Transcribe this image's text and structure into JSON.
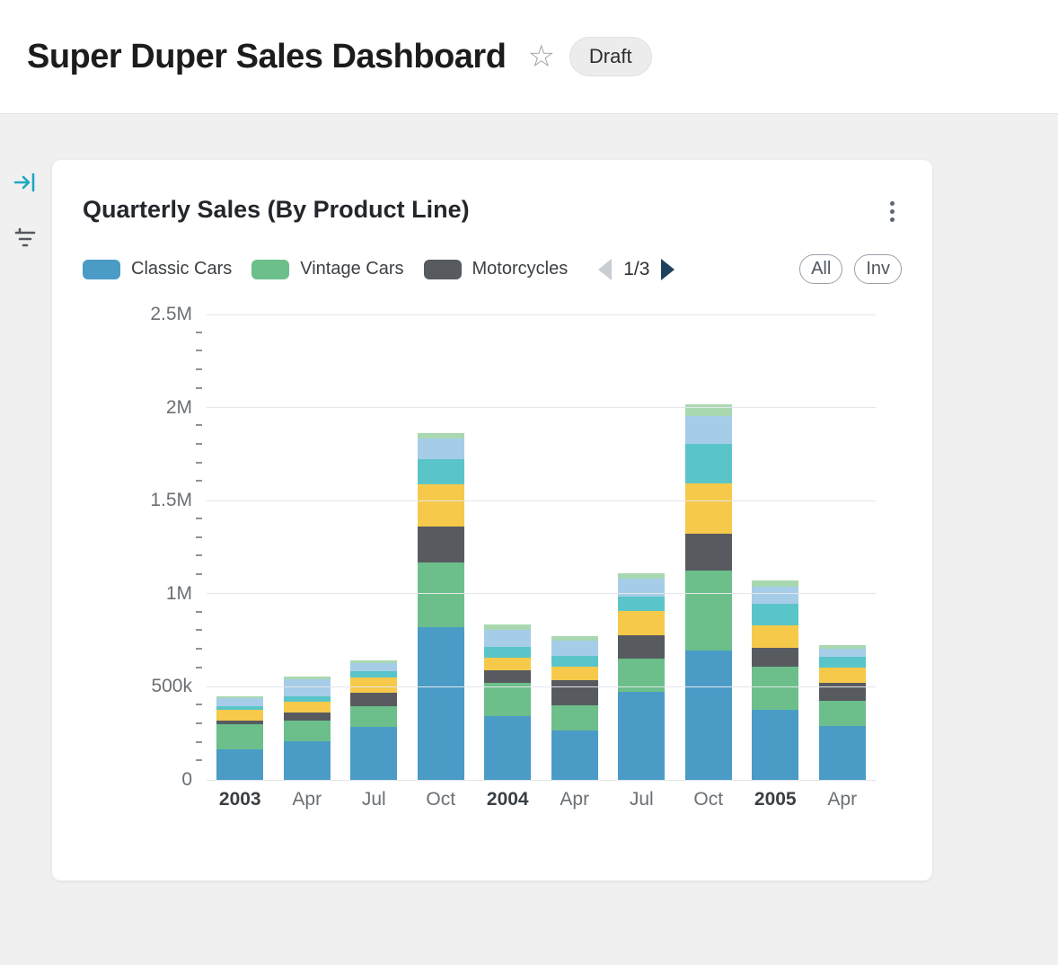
{
  "header": {
    "title": "Super Duper Sales Dashboard",
    "badge": "Draft",
    "star_icon": "star-outline"
  },
  "sidebar": {
    "icons": [
      "arrow-to-bar-icon",
      "filter-lines-icon"
    ],
    "accent_color": "#1ea7c2"
  },
  "card": {
    "title": "Quarterly Sales (By Product Line)",
    "menu_icon": "kebab-menu",
    "pager": {
      "label": "1/3",
      "prev_icon": "left-triangle",
      "next_icon": "right-triangle"
    },
    "filter_buttons": {
      "all": "All",
      "inv": "Inv"
    }
  },
  "colors": {
    "page_bg": "#f0f0f0",
    "grid": "#e4e6ea",
    "pager_next": "#20415e",
    "pager_prev": "#c9ced3"
  },
  "chart_data": {
    "type": "bar",
    "stacked": true,
    "title": "Quarterly Sales (By Product Line)",
    "ylim": [
      0,
      2500000
    ],
    "yticks": [
      "0",
      "500k",
      "1M",
      "1.5M",
      "2M",
      "2.5M"
    ],
    "minor_ticks_per_interval": 4,
    "legend_position": "top",
    "legend_pagination": "1/3",
    "grid": true,
    "categories": [
      {
        "label": "2003",
        "bold": true
      },
      {
        "label": "Apr",
        "bold": false
      },
      {
        "label": "Jul",
        "bold": false
      },
      {
        "label": "Oct",
        "bold": false
      },
      {
        "label": "2004",
        "bold": true
      },
      {
        "label": "Apr",
        "bold": false
      },
      {
        "label": "Jul",
        "bold": false
      },
      {
        "label": "Oct",
        "bold": false
      },
      {
        "label": "2005",
        "bold": true
      },
      {
        "label": "Apr",
        "bold": false
      }
    ],
    "series": [
      {
        "name": "Classic Cars",
        "color": "#4a9cc6",
        "in_legend": true,
        "values": [
          165000,
          210000,
          285000,
          822000,
          341000,
          265000,
          471000,
          697000,
          375000,
          289000
        ]
      },
      {
        "name": "Vintage Cars",
        "color": "#6cbf8b",
        "in_legend": true,
        "values": [
          135000,
          110000,
          110000,
          346000,
          178000,
          135000,
          183000,
          428000,
          231000,
          135000
        ]
      },
      {
        "name": "Motorcycles",
        "color": "#575b60",
        "in_legend": true,
        "values": [
          20000,
          40000,
          75000,
          192000,
          72000,
          135000,
          125000,
          197000,
          106000,
          96000
        ]
      },
      {
        "name": "series-4",
        "color": "#f6c94a",
        "in_legend": false,
        "values": [
          55000,
          60000,
          80000,
          226000,
          67000,
          72000,
          130000,
          269000,
          120000,
          82000
        ]
      },
      {
        "name": "series-5",
        "color": "#5ac5c8",
        "in_legend": false,
        "values": [
          20000,
          30000,
          35000,
          135000,
          58000,
          58000,
          77000,
          216000,
          115000,
          58000
        ]
      },
      {
        "name": "series-6",
        "color": "#a6cde8",
        "in_legend": false,
        "values": [
          45000,
          90000,
          45000,
          111000,
          91000,
          82000,
          96000,
          149000,
          91000,
          43000
        ]
      },
      {
        "name": "series-7",
        "color": "#a9d8b0",
        "in_legend": false,
        "values": [
          10000,
          15000,
          10000,
          29000,
          29000,
          24000,
          29000,
          63000,
          34000,
          19000
        ]
      }
    ]
  }
}
